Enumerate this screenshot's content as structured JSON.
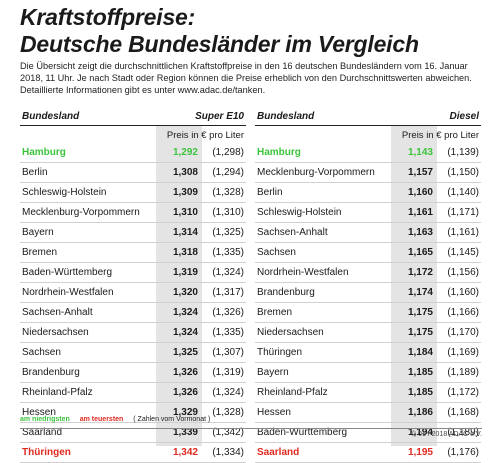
{
  "title_line1": "Kraftstoffpreise:",
  "title_line2": "Deutsche Bundesländer im Vergleich",
  "intro": "Die Übersicht zeigt die durchschnittlichen Kraftstoffpreise in den 16 deutschen Bundesländern vom 16. Januar 2018, 11 Uhr. Je nach Stadt oder Region können die Preise erheblich von den Durchschnittswerten abweichen. Detaillierte Informationen gibt es unter www.adac.de/tanken.",
  "colors": {
    "lowest": "#3cc43c",
    "highest": "#e0291f",
    "text": "#1a1a1a",
    "highlight": "#e4e4e4"
  },
  "chart_data": {
    "type": "table",
    "tables": [
      {
        "col_state": "Bundesland",
        "col_fuel": "Super E10",
        "unit": "Preis in € pro Liter",
        "rows": [
          {
            "state": "Hamburg",
            "price": "1,292",
            "prev": "(1,298)",
            "mark": "lowest"
          },
          {
            "state": "Berlin",
            "price": "1,308",
            "prev": "(1,294)",
            "mark": ""
          },
          {
            "state": "Schleswig-Holstein",
            "price": "1,309",
            "prev": "(1,328)",
            "mark": ""
          },
          {
            "state": "Mecklenburg-Vorpommern",
            "price": "1,310",
            "prev": "(1,310)",
            "mark": ""
          },
          {
            "state": "Bayern",
            "price": "1,314",
            "prev": "(1,325)",
            "mark": ""
          },
          {
            "state": "Bremen",
            "price": "1,318",
            "prev": "(1,335)",
            "mark": ""
          },
          {
            "state": "Baden-Württemberg",
            "price": "1,319",
            "prev": "(1,324)",
            "mark": ""
          },
          {
            "state": "Nordrhein-Westfalen",
            "price": "1,320",
            "prev": "(1,317)",
            "mark": ""
          },
          {
            "state": "Sachsen-Anhalt",
            "price": "1,324",
            "prev": "(1,326)",
            "mark": ""
          },
          {
            "state": "Niedersachsen",
            "price": "1,324",
            "prev": "(1,335)",
            "mark": ""
          },
          {
            "state": "Sachsen",
            "price": "1,325",
            "prev": "(1,307)",
            "mark": ""
          },
          {
            "state": "Brandenburg",
            "price": "1,326",
            "prev": "(1,319)",
            "mark": ""
          },
          {
            "state": "Rheinland-Pfalz",
            "price": "1,326",
            "prev": "(1,324)",
            "mark": ""
          },
          {
            "state": "Hessen",
            "price": "1,329",
            "prev": "(1,328)",
            "mark": ""
          },
          {
            "state": "Saarland",
            "price": "1,339",
            "prev": "(1,342)",
            "mark": ""
          },
          {
            "state": "Thüringen",
            "price": "1,342",
            "prev": "(1,334)",
            "mark": "highest"
          }
        ]
      },
      {
        "col_state": "Bundesland",
        "col_fuel": "Diesel",
        "unit": "Preis in € pro Liter",
        "rows": [
          {
            "state": "Hamburg",
            "price": "1,143",
            "prev": "(1,139)",
            "mark": "lowest"
          },
          {
            "state": "Mecklenburg-Vorpommern",
            "price": "1,157",
            "prev": "(1,150)",
            "mark": ""
          },
          {
            "state": "Berlin",
            "price": "1,160",
            "prev": "(1,140)",
            "mark": ""
          },
          {
            "state": "Schleswig-Holstein",
            "price": "1,161",
            "prev": "(1,171)",
            "mark": ""
          },
          {
            "state": "Sachsen-Anhalt",
            "price": "1,163",
            "prev": "(1,161)",
            "mark": ""
          },
          {
            "state": "Sachsen",
            "price": "1,165",
            "prev": "(1,145)",
            "mark": ""
          },
          {
            "state": "Nordrhein-Westfalen",
            "price": "1,172",
            "prev": "(1,156)",
            "mark": ""
          },
          {
            "state": "Brandenburg",
            "price": "1,174",
            "prev": "(1,160)",
            "mark": ""
          },
          {
            "state": "Bremen",
            "price": "1,175",
            "prev": "(1,166)",
            "mark": ""
          },
          {
            "state": "Niedersachsen",
            "price": "1,175",
            "prev": "(1,170)",
            "mark": ""
          },
          {
            "state": "Thüringen",
            "price": "1,184",
            "prev": "(1,169)",
            "mark": ""
          },
          {
            "state": "Bayern",
            "price": "1,185",
            "prev": "(1,189)",
            "mark": ""
          },
          {
            "state": "Rheinland-Pfalz",
            "price": "1,185",
            "prev": "(1,172)",
            "mark": ""
          },
          {
            "state": "Hessen",
            "price": "1,186",
            "prev": "(1,168)",
            "mark": ""
          },
          {
            "state": "Baden-Württemberg",
            "price": "1,194",
            "prev": "(1,189)",
            "mark": ""
          },
          {
            "state": "Saarland",
            "price": "1,195",
            "prev": "(1,176)",
            "mark": "highest"
          }
        ]
      }
    ]
  },
  "legend": {
    "lowest": "am niedrigsten",
    "highest": "am teuersten",
    "note": "( Zahlen vom Vormonat )"
  },
  "copyright": "© 01 / 2018 ADAC e.V."
}
